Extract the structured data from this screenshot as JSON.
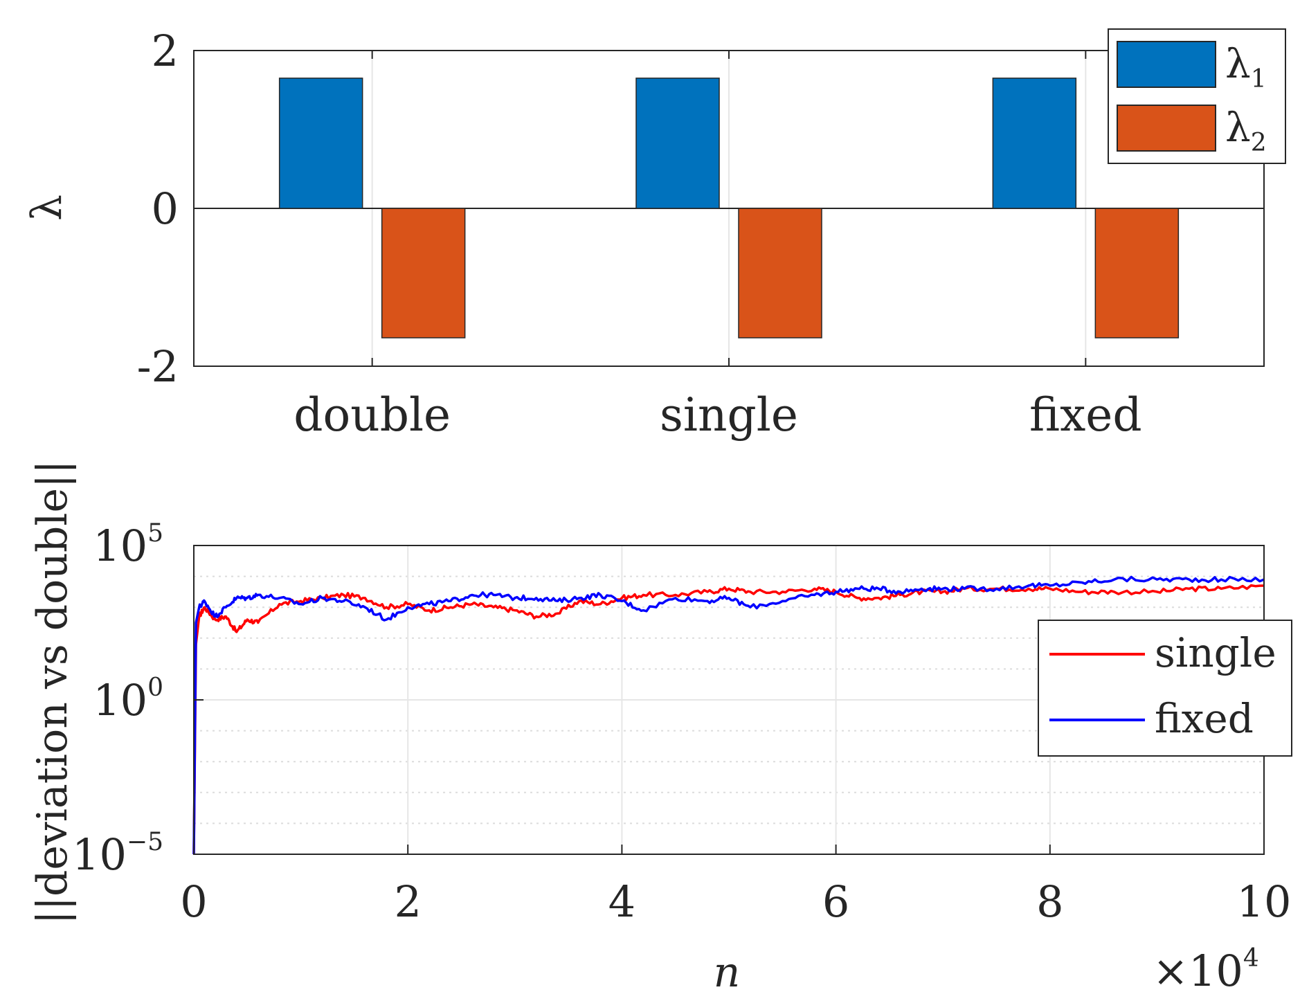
{
  "chart_data": [
    {
      "type": "bar",
      "categories": [
        "double",
        "single",
        "fixed"
      ],
      "series": [
        {
          "name": "λ",
          "subscript": "1",
          "color": "#0072BD",
          "values": [
            1.65,
            1.65,
            1.65
          ]
        },
        {
          "name": "λ",
          "subscript": "2",
          "color": "#D95319",
          "values": [
            -1.64,
            -1.64,
            -1.64
          ]
        }
      ],
      "ylabel": "λ",
      "ylim": [
        -2,
        2
      ],
      "yticks": [
        {
          "value": 2,
          "label": "2"
        },
        {
          "value": 0,
          "label": "0"
        },
        {
          "value": -2,
          "label": "-2"
        }
      ],
      "grid": true,
      "legend_location": "top-right"
    },
    {
      "type": "line",
      "yscale": "log",
      "xlabel": "n",
      "ylabel": "||deviation vs double||",
      "xlim": [
        0,
        10
      ],
      "x_multiplier": {
        "base": "×10",
        "exponent": "4"
      },
      "xticks": [
        "0",
        "2",
        "4",
        "6",
        "8",
        "10"
      ],
      "ylim_log10": [
        -5,
        5
      ],
      "yticks": [
        {
          "log10": 5,
          "base": "10",
          "exponent": "5"
        },
        {
          "log10": 0,
          "base": "10",
          "exponent": "0"
        },
        {
          "log10": -5,
          "base": "10",
          "exponent": "−5"
        }
      ],
      "grid": true,
      "legend_location": "right",
      "series": [
        {
          "name": "single",
          "color": "#FF0000",
          "x": [
            0,
            0.02,
            0.05,
            0.1,
            0.2,
            0.3,
            0.4,
            0.5,
            0.6,
            0.8,
            1.0,
            1.2,
            1.4,
            1.6,
            1.8,
            2.0,
            2.2,
            2.4,
            2.6,
            2.8,
            3.0,
            3.2,
            3.4,
            3.6,
            3.8,
            4.0,
            4.2,
            4.5,
            4.8,
            5.0,
            5.2,
            5.5,
            5.8,
            6.0,
            6.2,
            6.4,
            6.6,
            6.8,
            7.0,
            7.2,
            7.5,
            7.8,
            8.0,
            8.3,
            8.6,
            9.0,
            9.3,
            9.6,
            10.0
          ],
          "log10_y": [
            -5.0,
            1.8,
            2.7,
            3.0,
            2.6,
            2.7,
            2.2,
            2.6,
            2.5,
            3.1,
            3.2,
            3.3,
            3.4,
            3.3,
            3.0,
            3.1,
            2.9,
            3.0,
            3.1,
            3.0,
            2.9,
            2.7,
            2.8,
            3.2,
            3.1,
            3.3,
            3.4,
            3.4,
            3.5,
            3.6,
            3.5,
            3.5,
            3.6,
            3.5,
            3.3,
            3.3,
            3.4,
            3.5,
            3.5,
            3.6,
            3.6,
            3.6,
            3.6,
            3.5,
            3.5,
            3.5,
            3.6,
            3.6,
            3.7
          ]
        },
        {
          "name": "fixed",
          "color": "#0000FF",
          "x": [
            0,
            0.02,
            0.05,
            0.1,
            0.2,
            0.3,
            0.4,
            0.5,
            0.6,
            0.8,
            1.0,
            1.2,
            1.4,
            1.6,
            1.8,
            2.0,
            2.2,
            2.4,
            2.6,
            2.8,
            3.0,
            3.2,
            3.4,
            3.6,
            3.8,
            4.0,
            4.2,
            4.5,
            4.8,
            5.0,
            5.2,
            5.5,
            5.8,
            6.0,
            6.2,
            6.4,
            6.6,
            6.8,
            7.0,
            7.2,
            7.5,
            7.8,
            8.0,
            8.3,
            8.6,
            9.0,
            9.3,
            9.6,
            10.0
          ],
          "log10_y": [
            -5.0,
            2.5,
            3.0,
            3.2,
            2.7,
            3.0,
            3.3,
            3.3,
            3.4,
            3.3,
            3.1,
            3.3,
            3.2,
            3.0,
            2.6,
            3.0,
            3.1,
            3.2,
            3.4,
            3.4,
            3.3,
            3.3,
            3.2,
            3.3,
            3.4,
            3.2,
            2.9,
            3.3,
            3.2,
            3.3,
            3.0,
            3.2,
            3.4,
            3.5,
            3.6,
            3.6,
            3.5,
            3.6,
            3.6,
            3.6,
            3.6,
            3.7,
            3.7,
            3.8,
            3.9,
            3.9,
            3.9,
            3.9,
            3.9
          ]
        }
      ]
    }
  ]
}
